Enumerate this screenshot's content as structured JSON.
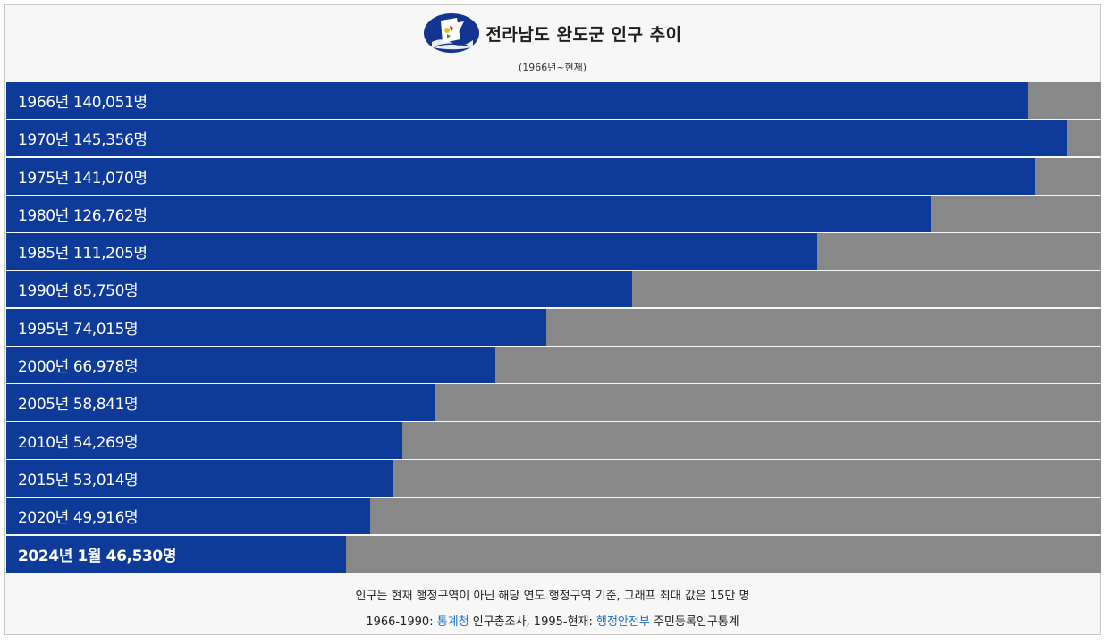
{
  "chart_data": {
    "type": "bar",
    "orientation": "horizontal",
    "title": "전라남도 완도군 인구 추이",
    "subtitle": "(1966년~현재)",
    "xlim": [
      0,
      150000
    ],
    "categories": [
      "1966년",
      "1970년",
      "1975년",
      "1980년",
      "1985년",
      "1990년",
      "1995년",
      "2000년",
      "2005년",
      "2010년",
      "2015년",
      "2020년",
      "2024년 1월"
    ],
    "values": [
      140051,
      145356,
      141070,
      126762,
      111205,
      85750,
      74015,
      66978,
      58841,
      54269,
      53014,
      49916,
      46530
    ],
    "labels": [
      "1966년 140,051명",
      "1970년 145,356명",
      "1975년 141,070명",
      "1980년 126,762명",
      "1985년 111,205명",
      "1990년 85,750명",
      "1995년 74,015명",
      "2000년 66,978명",
      "2005년 58,841명",
      "2010년 54,269명",
      "2015년 53,014명",
      "2020년 49,916명",
      "2024년 1월 46,530명"
    ],
    "colors": {
      "bar": "#0e3a9a",
      "track": "#888888"
    }
  },
  "footer": {
    "note": "인구는 현재 행정구역이 아닌 해당 연도 행정구역 기준, 그래프 최대 값은 15만 명",
    "source_prefix": "1966-1990: ",
    "source1_link": "통계청",
    "source1_text": " 인구총조사, 1995-현재: ",
    "source2_link": "행정안전부",
    "source2_text": " 주민등록인구통계"
  },
  "emblem_icon": "wando-county-emblem-icon"
}
